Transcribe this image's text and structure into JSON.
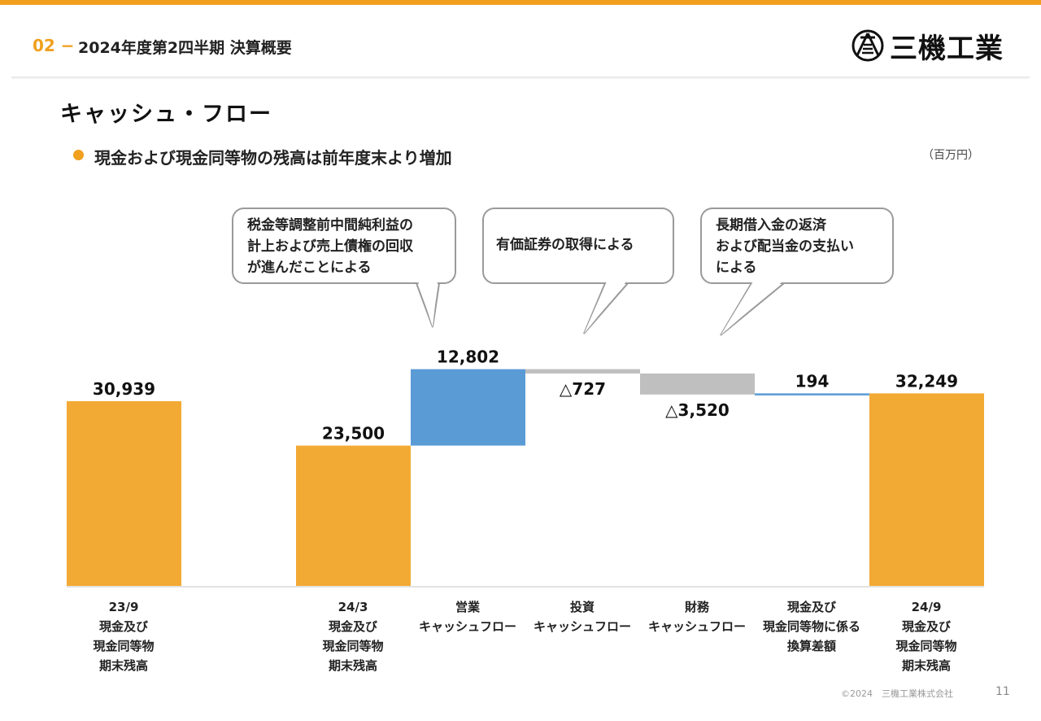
{
  "header": {
    "section_number": "02 −",
    "section_title": "2024年度第2四半期 決算概要",
    "logo_text": "三機工業"
  },
  "page_title": "キャッシュ・フロー",
  "bullet": "現金および現金同等物の残高は前年度末より増加",
  "unit": "（百万円）",
  "callouts": [
    {
      "text": "税金等調整前中間純利益の\n計上および売上債権の回収\nが進んだことによる"
    },
    {
      "text": "有価証券の取得による"
    },
    {
      "text": "長期借入金の返済\nおよび配当金の支払い\nによる"
    }
  ],
  "chart_data": {
    "type": "bar",
    "subtype": "waterfall",
    "categories": [
      "23/9\n現金及び\n現金同等物\n期末残高",
      "24/3\n現金及び\n現金同等物\n期末残高",
      "営業\nキャッシュフロー",
      "投資\nキャッシュフロー",
      "財務\nキャッシュフロー",
      "現金及び\n現金同等物に係る\n換算差額",
      "24/9\n現金及び\n現金同等物\n期末残高"
    ],
    "bars": [
      {
        "kind": "total",
        "value": 30939,
        "label": "30,939",
        "color": "#f2aa35"
      },
      {
        "kind": "total",
        "value": 23500,
        "label": "23,500",
        "color": "#f2aa35"
      },
      {
        "kind": "delta",
        "value": 12802,
        "label": "12,802",
        "color": "#5b9bd5"
      },
      {
        "kind": "delta",
        "value": -727,
        "label": "△727",
        "color": "#bfbfbf"
      },
      {
        "kind": "delta",
        "value": -3520,
        "label": "△3,520",
        "color": "#bfbfbf"
      },
      {
        "kind": "delta",
        "value": 194,
        "label": "194",
        "color": "#5b9bd5"
      },
      {
        "kind": "total",
        "value": 32249,
        "label": "32,249",
        "color": "#f2aa35"
      }
    ],
    "unit": "百万円"
  },
  "footer": {
    "copyright": "©2024　三機工業株式会社",
    "page_number": "11"
  }
}
